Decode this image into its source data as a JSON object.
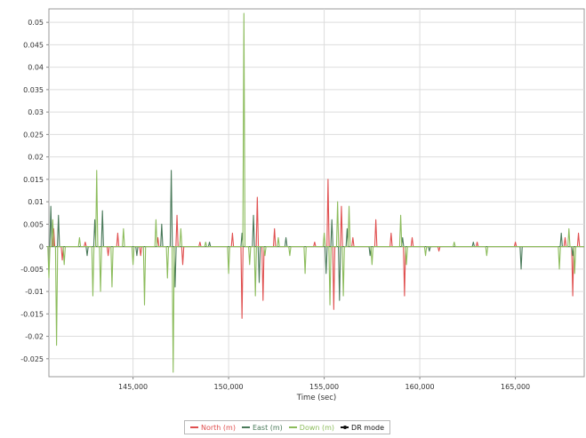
{
  "chart_data": {
    "type": "line",
    "title": "",
    "xlabel": "Time (sec)",
    "ylabel": "",
    "xlim": [
      140600,
      168600
    ],
    "ylim": [
      -0.029,
      0.053
    ],
    "x_ticks": [
      145000,
      150000,
      155000,
      160000,
      165000
    ],
    "x_tick_labels": [
      "145,000",
      "150,000",
      "155,000",
      "160,000",
      "165,000"
    ],
    "y_ticks": [
      0.05,
      0.045,
      0.04,
      0.035,
      0.03,
      0.025,
      0.02,
      0.015,
      0.01,
      0.005,
      0,
      -0.005,
      -0.01,
      -0.015,
      -0.02,
      -0.025
    ],
    "y_tick_labels": [
      "0.05",
      "0.045",
      "0.04",
      "0.035",
      "0.03",
      "0.025",
      "0.02",
      "0.015",
      "0.01",
      "0.005",
      "0",
      "-0.005",
      "-0.01",
      "-0.015",
      "-0.02",
      "-0.025"
    ],
    "grid": true,
    "legend_position": "bottom-center",
    "series": [
      {
        "name": "North (m)",
        "color": "#e05050",
        "spikes": [
          [
            140850,
            0.004
          ],
          [
            141300,
            -0.003
          ],
          [
            142500,
            0.001
          ],
          [
            143700,
            -0.002
          ],
          [
            144200,
            0.003
          ],
          [
            145400,
            -0.002
          ],
          [
            146300,
            0.002
          ],
          [
            147300,
            0.007
          ],
          [
            147600,
            -0.004
          ],
          [
            148500,
            0.001
          ],
          [
            150200,
            0.003
          ],
          [
            150700,
            -0.016
          ],
          [
            151500,
            0.011
          ],
          [
            151800,
            -0.012
          ],
          [
            152400,
            0.004
          ],
          [
            154500,
            0.001
          ],
          [
            155200,
            0.015
          ],
          [
            155500,
            -0.014
          ],
          [
            155900,
            0.009
          ],
          [
            156500,
            0.002
          ],
          [
            157700,
            0.006
          ],
          [
            158500,
            0.003
          ],
          [
            159200,
            -0.011
          ],
          [
            159600,
            0.002
          ],
          [
            161000,
            -0.001
          ],
          [
            163000,
            0.001
          ],
          [
            165000,
            0.001
          ],
          [
            167600,
            0.002
          ],
          [
            168000,
            -0.011
          ],
          [
            168300,
            0.003
          ]
        ]
      },
      {
        "name": "East (m)",
        "color": "#4a7a5a",
        "spikes": [
          [
            140700,
            0.009
          ],
          [
            141100,
            0.007
          ],
          [
            142600,
            -0.002
          ],
          [
            143000,
            0.006
          ],
          [
            143400,
            0.008
          ],
          [
            145200,
            -0.002
          ],
          [
            146500,
            0.005
          ],
          [
            147000,
            0.017
          ],
          [
            147200,
            -0.009
          ],
          [
            149000,
            0.001
          ],
          [
            150700,
            0.003
          ],
          [
            151300,
            0.007
          ],
          [
            151600,
            -0.008
          ],
          [
            153000,
            0.002
          ],
          [
            155100,
            -0.006
          ],
          [
            155400,
            0.006
          ],
          [
            155800,
            -0.012
          ],
          [
            156200,
            0.004
          ],
          [
            157400,
            -0.002
          ],
          [
            159100,
            0.002
          ],
          [
            160500,
            -0.001
          ],
          [
            162800,
            0.001
          ],
          [
            165300,
            -0.005
          ],
          [
            167400,
            0.003
          ],
          [
            168000,
            -0.002
          ]
        ]
      },
      {
        "name": "Down (m)",
        "color": "#8cbc5c",
        "spikes": [
          [
            140600,
            -0.007
          ],
          [
            140800,
            0.006
          ],
          [
            141000,
            -0.022
          ],
          [
            141400,
            -0.004
          ],
          [
            142200,
            0.002
          ],
          [
            142900,
            -0.011
          ],
          [
            143100,
            0.017
          ],
          [
            143300,
            -0.01
          ],
          [
            143900,
            -0.009
          ],
          [
            144500,
            0.004
          ],
          [
            145000,
            -0.004
          ],
          [
            145600,
            -0.013
          ],
          [
            146200,
            0.006
          ],
          [
            146800,
            -0.007
          ],
          [
            147100,
            -0.028
          ],
          [
            147500,
            0.004
          ],
          [
            148800,
            0.001
          ],
          [
            150000,
            -0.006
          ],
          [
            150800,
            0.052
          ],
          [
            151100,
            -0.004
          ],
          [
            151400,
            -0.011
          ],
          [
            151900,
            -0.002
          ],
          [
            152600,
            0.002
          ],
          [
            153200,
            -0.002
          ],
          [
            154000,
            -0.006
          ],
          [
            155000,
            0.003
          ],
          [
            155300,
            -0.013
          ],
          [
            155700,
            0.01
          ],
          [
            156000,
            -0.011
          ],
          [
            156300,
            0.009
          ],
          [
            157500,
            -0.004
          ],
          [
            159000,
            0.007
          ],
          [
            159300,
            -0.004
          ],
          [
            160300,
            -0.002
          ],
          [
            161800,
            0.001
          ],
          [
            163500,
            -0.002
          ],
          [
            167300,
            -0.005
          ],
          [
            167800,
            0.004
          ],
          [
            168100,
            -0.006
          ]
        ]
      }
    ],
    "legend": [
      {
        "label": "North (m)",
        "color": "#e05050",
        "kind": "line"
      },
      {
        "label": "East (m)",
        "color": "#4a7a5a",
        "kind": "line"
      },
      {
        "label": "Down (m)",
        "color": "#8cbc5c",
        "kind": "line"
      },
      {
        "label": "DR mode",
        "color": "#111111",
        "kind": "marker"
      }
    ]
  }
}
